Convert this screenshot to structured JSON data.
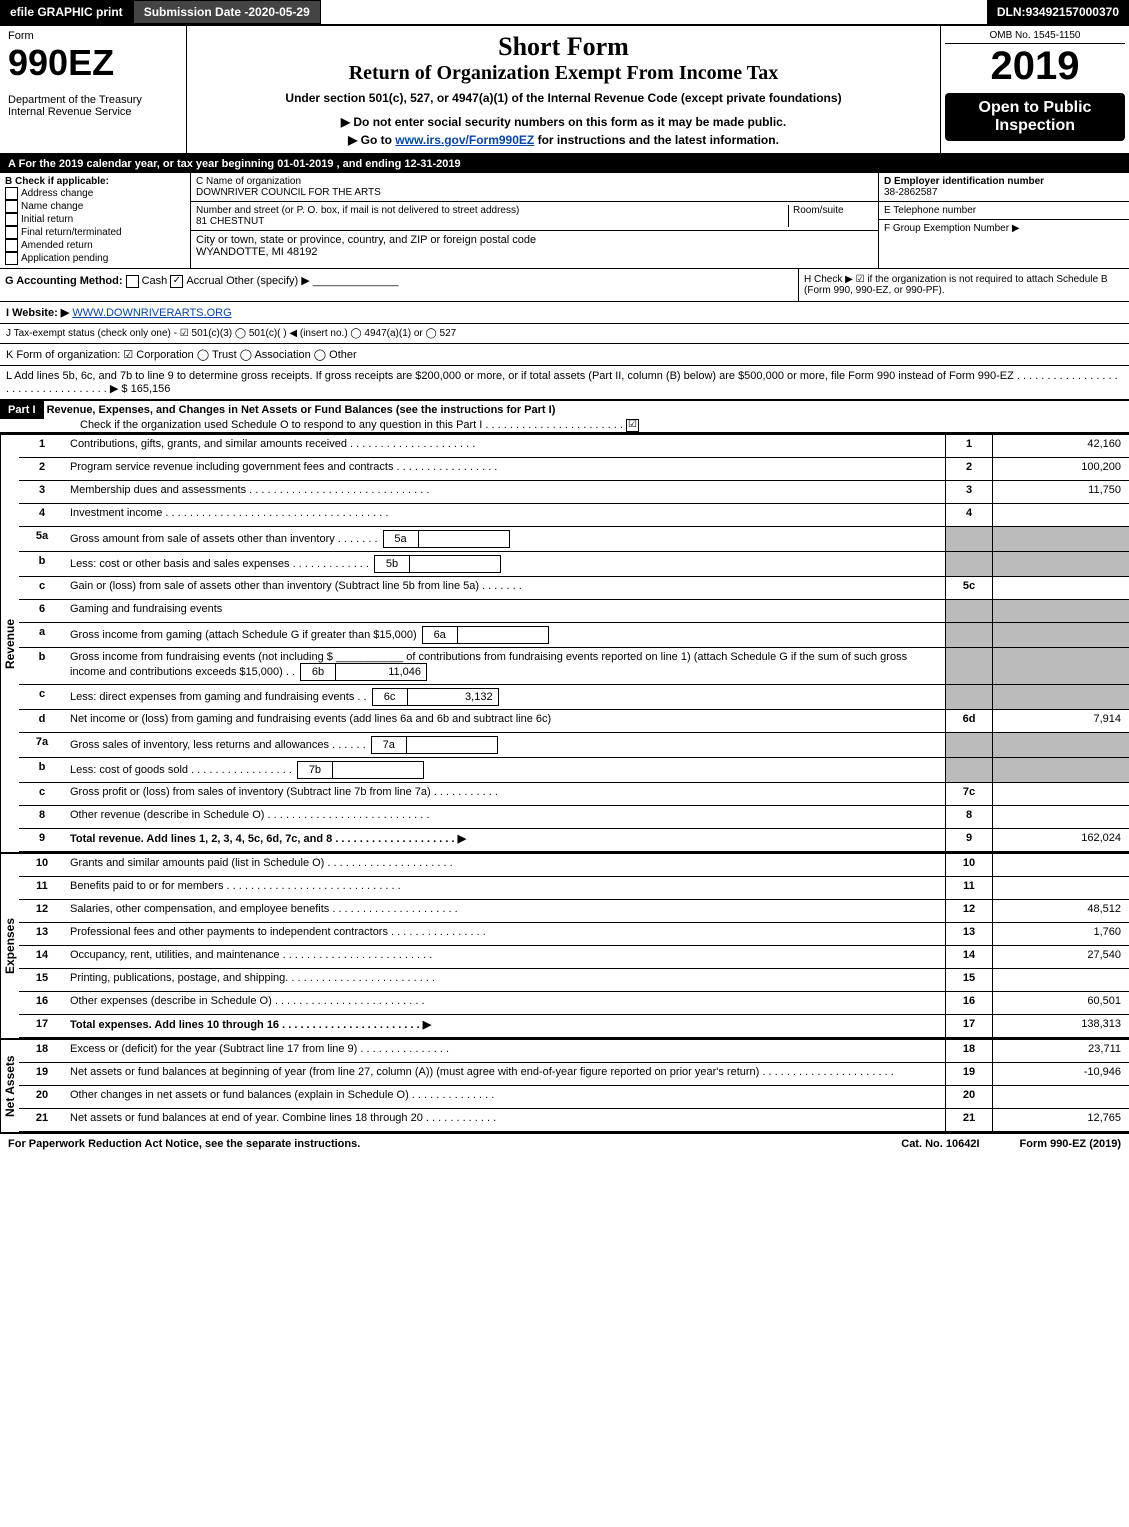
{
  "topbar": {
    "efile": "efile GRAPHIC print",
    "subdate_label": "Submission Date - ",
    "subdate": "2020-05-29",
    "dln_label": "DLN: ",
    "dln": "93492157000370"
  },
  "header": {
    "form_word": "Form",
    "form_no": "990EZ",
    "dept": "Department of the Treasury",
    "irs": "Internal Revenue Service",
    "short_form": "Short Form",
    "title": "Return of Organization Exempt From Income Tax",
    "subtitle": "Under section 501(c), 527, or 4947(a)(1) of the Internal Revenue Code (except private foundations)",
    "warn": "▶ Do not enter social security numbers on this form as it may be made public.",
    "goto": "▶ Go to ",
    "goto_link": "www.irs.gov/Form990EZ",
    "goto_after": " for instructions and the latest information.",
    "omb": "OMB No. 1545-1150",
    "year": "2019",
    "open": "Open to Public Inspection"
  },
  "periodA": "For the 2019 calendar year, or tax year beginning 01-01-2019 , and ending 12-31-2019",
  "boxB": {
    "title": "B  Check if applicable:",
    "opts": [
      "Address change",
      "Name change",
      "Initial return",
      "Final return/terminated",
      "Amended return",
      "Application pending"
    ]
  },
  "boxC": {
    "label": "C Name of organization",
    "name": "DOWNRIVER COUNCIL FOR THE ARTS",
    "street_label": "Number and street (or P. O. box, if mail is not delivered to street address)",
    "room_label": "Room/suite",
    "street": "81 CHESTNUT",
    "city_label": "City or town, state or province, country, and ZIP or foreign postal code",
    "city": "WYANDOTTE, MI  48192"
  },
  "boxD": {
    "label": "D Employer identification number",
    "ein": "38-2862587"
  },
  "boxE": "E Telephone number",
  "boxF": "F Group Exemption Number  ▶",
  "boxG": {
    "label": "G Accounting Method:",
    "cash": "Cash",
    "accrual": "Accrual",
    "other": "Other (specify) ▶"
  },
  "boxH": "H  Check ▶ ☑ if the organization is not required to attach Schedule B (Form 990, 990-EZ, or 990-PF).",
  "boxI": {
    "label": "I Website: ▶",
    "site": "WWW.DOWNRIVERARTS.ORG"
  },
  "boxJ": "J Tax-exempt status (check only one) - ☑ 501(c)(3)  ◯ 501(c)(  ) ◀ (insert no.)  ◯ 4947(a)(1) or  ◯ 527",
  "boxK": "K Form of organization:  ☑ Corporation  ◯ Trust  ◯ Association  ◯ Other",
  "boxL": {
    "text": "L Add lines 5b, 6c, and 7b to line 9 to determine gross receipts. If gross receipts are $200,000 or more, or if total assets (Part II, column (B) below) are $500,000 or more, file Form 990 instead of Form 990-EZ  . . . . . . . . . . . . . . . . . . . . . . . . . . . . . . . . . .  ▶ $",
    "amount": "165,156"
  },
  "part1": {
    "label": "Part I",
    "title": "Revenue, Expenses, and Changes in Net Assets or Fund Balances (see the instructions for Part I)",
    "sub": "Check if the organization used Schedule O to respond to any question in this Part I . . . . . . . . . . . . . . . . . . . . . . .",
    "checked": "☑"
  },
  "revenue_label": "Revenue",
  "expenses_label": "Expenses",
  "netassets_label": "Net Assets",
  "lines": {
    "l1": {
      "n": "1",
      "d": "Contributions, gifts, grants, and similar amounts received . . . . . . . . . . . . . . . . . . . . .",
      "b": "1",
      "a": "42,160"
    },
    "l2": {
      "n": "2",
      "d": "Program service revenue including government fees and contracts . . . . . . . . . . . . . . . . .",
      "b": "2",
      "a": "100,200"
    },
    "l3": {
      "n": "3",
      "d": "Membership dues and assessments . . . . . . . . . . . . . . . . . . . . . . . . . . . . . .",
      "b": "3",
      "a": "11,750"
    },
    "l4": {
      "n": "4",
      "d": "Investment income . . . . . . . . . . . . . . . . . . . . . . . . . . . . . . . . . . . . .",
      "b": "4",
      "a": ""
    },
    "l5a": {
      "n": "5a",
      "d": "Gross amount from sale of assets other than inventory . . . . . . .",
      "sb": "5a",
      "sv": ""
    },
    "l5b": {
      "n": "b",
      "d": "Less: cost or other basis and sales expenses . . . . . . . . . . . . .",
      "sb": "5b",
      "sv": ""
    },
    "l5c": {
      "n": "c",
      "d": "Gain or (loss) from sale of assets other than inventory (Subtract line 5b from line 5a) . . . . . . .",
      "b": "5c",
      "a": ""
    },
    "l6": {
      "n": "6",
      "d": "Gaming and fundraising events"
    },
    "l6a": {
      "n": "a",
      "d": "Gross income from gaming (attach Schedule G if greater than $15,000)",
      "sb": "6a",
      "sv": ""
    },
    "l6b": {
      "n": "b",
      "d": "Gross income from fundraising events (not including $ ___________ of contributions from fundraising events reported on line 1) (attach Schedule G if the sum of such gross income and contributions exceeds $15,000)    . .",
      "sb": "6b",
      "sv": "11,046"
    },
    "l6c": {
      "n": "c",
      "d": "Less: direct expenses from gaming and fundraising events    . .",
      "sb": "6c",
      "sv": "3,132"
    },
    "l6d": {
      "n": "d",
      "d": "Net income or (loss) from gaming and fundraising events (add lines 6a and 6b and subtract line 6c)",
      "b": "6d",
      "a": "7,914"
    },
    "l7a": {
      "n": "7a",
      "d": "Gross sales of inventory, less returns and allowances . . . . . .",
      "sb": "7a",
      "sv": ""
    },
    "l7b": {
      "n": "b",
      "d": "Less: cost of goods sold    . . . . . . . . . . . . . . . . .",
      "sb": "7b",
      "sv": ""
    },
    "l7c": {
      "n": "c",
      "d": "Gross profit or (loss) from sales of inventory (Subtract line 7b from line 7a) . . . . . . . . . . .",
      "b": "7c",
      "a": ""
    },
    "l8": {
      "n": "8",
      "d": "Other revenue (describe in Schedule O) . . . . . . . . . . . . . . . . . . . . . . . . . . .",
      "b": "8",
      "a": ""
    },
    "l9": {
      "n": "9",
      "d": "Total revenue. Add lines 1, 2, 3, 4, 5c, 6d, 7c, and 8  . . . . . . . . . . . . . . . . . . . . ▶",
      "b": "9",
      "a": "162,024",
      "bold": true
    },
    "l10": {
      "n": "10",
      "d": "Grants and similar amounts paid (list in Schedule O) . . . . . . . . . . . . . . . . . . . . .",
      "b": "10",
      "a": ""
    },
    "l11": {
      "n": "11",
      "d": "Benefits paid to or for members    . . . . . . . . . . . . . . . . . . . . . . . . . . . . .",
      "b": "11",
      "a": ""
    },
    "l12": {
      "n": "12",
      "d": "Salaries, other compensation, and employee benefits . . . . . . . . . . . . . . . . . . . . .",
      "b": "12",
      "a": "48,512"
    },
    "l13": {
      "n": "13",
      "d": "Professional fees and other payments to independent contractors . . . . . . . . . . . . . . . .",
      "b": "13",
      "a": "1,760"
    },
    "l14": {
      "n": "14",
      "d": "Occupancy, rent, utilities, and maintenance . . . . . . . . . . . . . . . . . . . . . . . . .",
      "b": "14",
      "a": "27,540"
    },
    "l15": {
      "n": "15",
      "d": "Printing, publications, postage, and shipping. . . . . . . . . . . . . . . . . . . . . . . . .",
      "b": "15",
      "a": ""
    },
    "l16": {
      "n": "16",
      "d": "Other expenses (describe in Schedule O)    . . . . . . . . . . . . . . . . . . . . . . . . .",
      "b": "16",
      "a": "60,501"
    },
    "l17": {
      "n": "17",
      "d": "Total expenses. Add lines 10 through 16    . . . . . . . . . . . . . . . . . . . . . . . ▶",
      "b": "17",
      "a": "138,313",
      "bold": true
    },
    "l18": {
      "n": "18",
      "d": "Excess or (deficit) for the year (Subtract line 17 from line 9)    . . . . . . . . . . . . . . .",
      "b": "18",
      "a": "23,711"
    },
    "l19": {
      "n": "19",
      "d": "Net assets or fund balances at beginning of year (from line 27, column (A)) (must agree with end-of-year figure reported on prior year's return) . . . . . . . . . . . . . . . . . . . . . .",
      "b": "19",
      "a": "-10,946"
    },
    "l20": {
      "n": "20",
      "d": "Other changes in net assets or fund balances (explain in Schedule O) . . . . . . . . . . . . . .",
      "b": "20",
      "a": ""
    },
    "l21": {
      "n": "21",
      "d": "Net assets or fund balances at end of year. Combine lines 18 through 20 . . . . . . . . . . . .",
      "b": "21",
      "a": "12,765"
    }
  },
  "footer": {
    "left": "For Paperwork Reduction Act Notice, see the separate instructions.",
    "mid": "Cat. No. 10642I",
    "right": "Form 990-EZ (2019)"
  }
}
